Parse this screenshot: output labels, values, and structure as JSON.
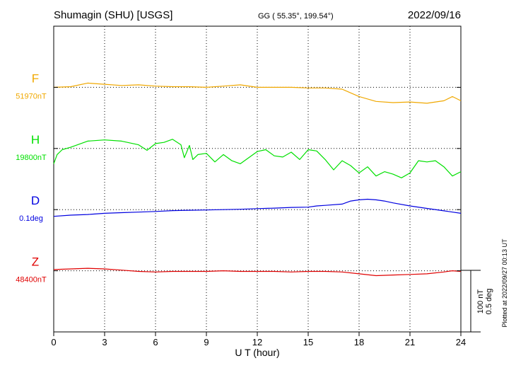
{
  "chart_data": {
    "type": "line",
    "title": "Shumagin (SHU)  [USGS]",
    "coords": "GG ( 55.35°, 199.54°)",
    "date": "2022/09/16",
    "xlabel": "U T (hour)",
    "xlim": [
      0,
      24
    ],
    "xticks": [
      0,
      3,
      6,
      9,
      12,
      15,
      18,
      21,
      24
    ],
    "xtick_labels": [
      "0",
      "3",
      "6",
      "9",
      "12",
      "15",
      "18",
      "21",
      "24"
    ],
    "grid": true,
    "scale_bar": {
      "label_top": "100 nT",
      "label_bottom": "0.5 deg"
    },
    "footnote": "Plotted at 2022/09/27 00:13 UT",
    "series": [
      {
        "name": "F",
        "baseline_label": "51970nT",
        "color": "#f0a800",
        "unit": "nT",
        "x": [
          0,
          1,
          2,
          3,
          4,
          5,
          6,
          7,
          8,
          9,
          10,
          11,
          12,
          13,
          14,
          15,
          16,
          17,
          18,
          19,
          20,
          21,
          22,
          23,
          23.5,
          24
        ],
        "values": [
          0,
          1,
          7,
          5,
          3,
          4,
          2,
          1,
          1,
          0,
          2,
          4,
          0,
          0,
          0,
          -1,
          -1,
          -3,
          -15,
          -23,
          -25,
          -24,
          -26,
          -22,
          -15,
          -22
        ]
      },
      {
        "name": "H",
        "baseline_label": "19800nT",
        "color": "#00e000",
        "unit": "nT",
        "x": [
          0,
          0.2,
          0.5,
          1,
          2,
          3,
          4,
          5,
          5.5,
          6,
          6.5,
          7,
          7.5,
          7.7,
          8,
          8.2,
          8.5,
          9,
          9.5,
          10,
          10.5,
          11,
          11.5,
          12,
          12.5,
          13,
          13.5,
          14,
          14.5,
          15,
          15.5,
          16,
          16.5,
          17,
          17.5,
          18,
          18.5,
          19,
          19.5,
          20,
          20.5,
          21,
          21.5,
          22,
          22.5,
          23,
          23.5,
          24
        ],
        "values": [
          -25,
          -10,
          -2,
          2,
          12,
          14,
          12,
          6,
          -3,
          8,
          10,
          15,
          6,
          -15,
          5,
          -18,
          -10,
          -8,
          -22,
          -10,
          -20,
          -25,
          -15,
          -5,
          -2,
          -12,
          -14,
          -6,
          -18,
          -2,
          -4,
          -18,
          -35,
          -20,
          -28,
          -40,
          -30,
          -45,
          -38,
          -42,
          -48,
          -40,
          -20,
          -22,
          -20,
          -30,
          -45,
          -38
        ]
      },
      {
        "name": "D",
        "baseline_label": "0.1deg",
        "color": "#0000e0",
        "unit": "deg",
        "x": [
          0,
          1,
          2,
          3,
          4,
          5,
          6,
          7,
          8,
          9,
          10,
          11,
          12,
          13,
          14,
          15,
          15.5,
          16,
          17,
          17.5,
          18,
          18.5,
          19,
          19.5,
          20,
          21,
          22,
          23,
          24
        ],
        "values": [
          -0.055,
          -0.045,
          -0.04,
          -0.03,
          -0.025,
          -0.02,
          -0.015,
          -0.008,
          -0.005,
          -0.003,
          0,
          0.003,
          0.008,
          0.012,
          0.018,
          0.02,
          0.03,
          0.035,
          0.045,
          0.07,
          0.08,
          0.085,
          0.08,
          0.07,
          0.055,
          0.03,
          0.01,
          -0.01,
          -0.03
        ]
      },
      {
        "name": "Z",
        "baseline_label": "48400nT",
        "color": "#e00000",
        "unit": "nT",
        "x": [
          0,
          1,
          2,
          3,
          4,
          5,
          6,
          7,
          8,
          9,
          10,
          11,
          12,
          13,
          14,
          15,
          16,
          17,
          18,
          19,
          20,
          21,
          22,
          23,
          23.5,
          24
        ],
        "values": [
          2,
          3,
          4,
          3,
          1,
          -1,
          -2,
          -1,
          -1,
          -1,
          0,
          -1,
          -1,
          -1,
          -2,
          -1,
          -1,
          -2,
          -5,
          -8,
          -7,
          -6,
          -5,
          -2,
          0,
          -1
        ]
      }
    ]
  }
}
